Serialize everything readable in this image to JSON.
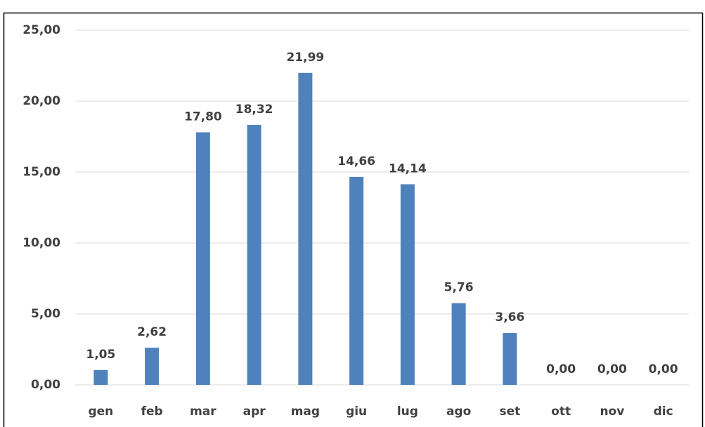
{
  "chart_data": {
    "type": "bar",
    "categories": [
      "gen",
      "feb",
      "mar",
      "apr",
      "mag",
      "giu",
      "lug",
      "ago",
      "set",
      "ott",
      "nov",
      "dic"
    ],
    "values": [
      1.05,
      2.62,
      17.8,
      18.32,
      21.99,
      14.66,
      14.14,
      5.76,
      3.66,
      0,
      0,
      0
    ],
    "value_labels": [
      "1,05",
      "2,62",
      "17,80",
      "18,32",
      "21,99",
      "14,66",
      "14,14",
      "5,76",
      "3,66",
      "0,00",
      "0,00",
      "0,00"
    ],
    "color": "#4f81bd",
    "ylim": [
      0,
      25
    ],
    "yticks": [
      {
        "value": 0,
        "label": "0,00"
      },
      {
        "value": 5,
        "label": "5,00"
      },
      {
        "value": 10,
        "label": "10,00"
      },
      {
        "value": 15,
        "label": "15,00"
      },
      {
        "value": 20,
        "label": "20,00"
      },
      {
        "value": 25,
        "label": "25,00"
      }
    ],
    "grid": true
  }
}
